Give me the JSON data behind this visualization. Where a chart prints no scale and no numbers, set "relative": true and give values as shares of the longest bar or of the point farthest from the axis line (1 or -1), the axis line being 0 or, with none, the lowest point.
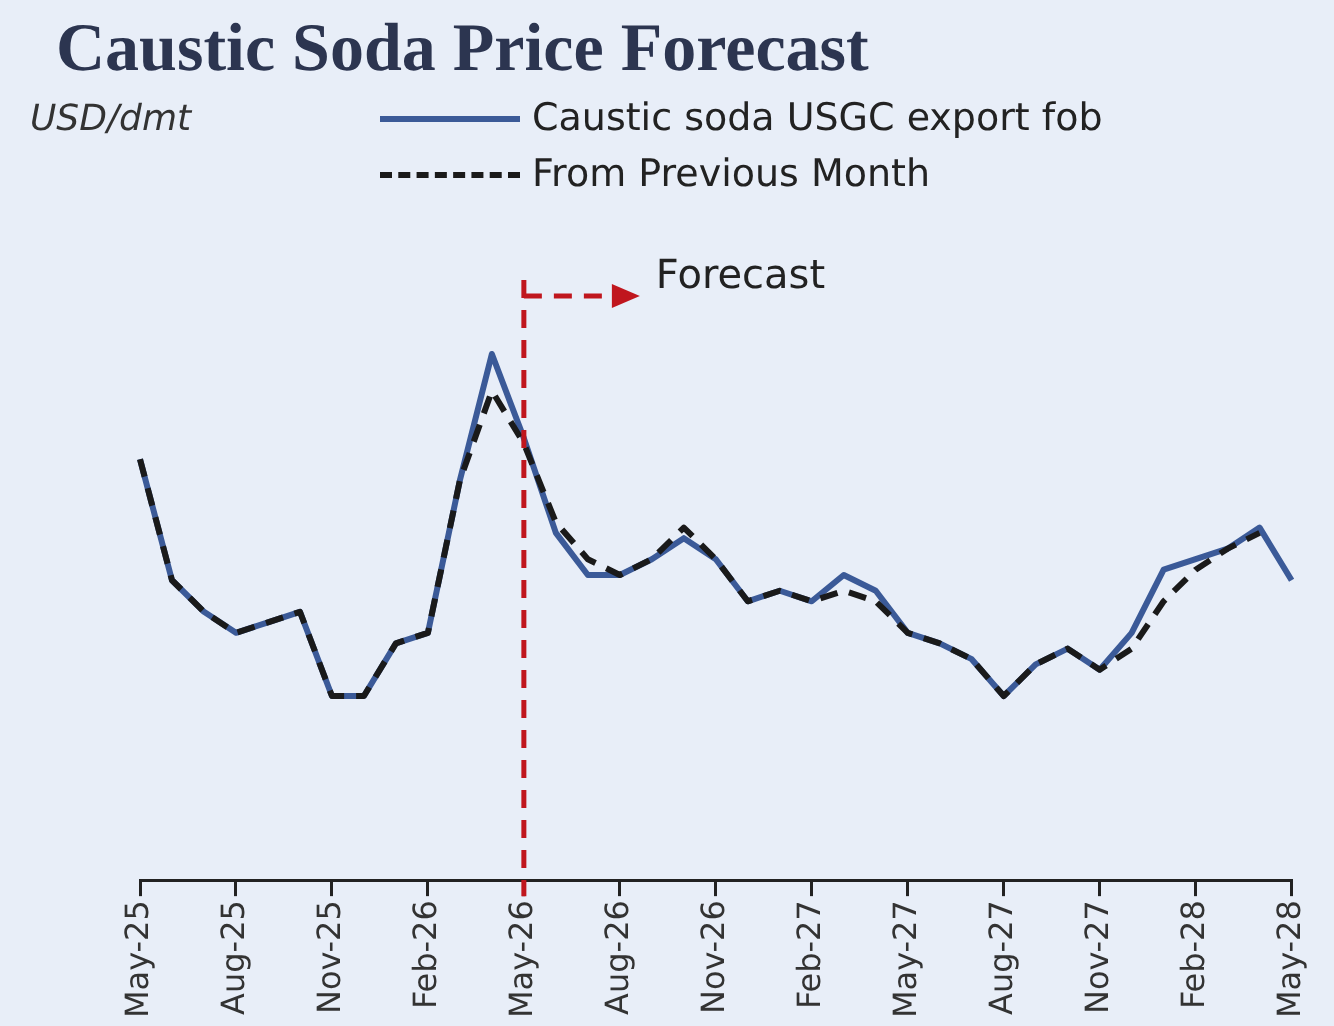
{
  "chart_data": {
    "type": "line",
    "title": "Caustic Soda Price Forecast",
    "annotations": [
      "USD/dmt"
    ],
    "relative": true,
    "legend": "top",
    "categories": [
      "May-25",
      null,
      null,
      "Aug-25",
      null,
      null,
      "Nov-25",
      null,
      null,
      "Feb-26",
      null,
      null,
      "May-26",
      null,
      null,
      "Aug-26",
      null,
      null,
      "Nov-26",
      null,
      null,
      "Feb-27",
      null,
      null,
      "May-27",
      null,
      null,
      "Aug-27",
      null,
      null,
      "Nov-27",
      null,
      null,
      "Feb-28",
      null,
      null,
      "May-28"
    ],
    "series": [
      {
        "name": "Caustic soda USGC export fob",
        "color": "#3b5a98",
        "values": [
          0.8,
          0.57,
          0.51,
          0.47,
          0.49,
          0.51,
          0.35,
          0.35,
          0.45,
          0.47,
          0.76,
          1.0,
          0.84,
          0.66,
          0.58,
          0.58,
          0.61,
          0.65,
          0.61,
          0.53,
          0.55,
          0.53,
          0.58,
          0.55,
          0.47,
          0.45,
          0.42,
          0.35,
          0.41,
          0.44,
          0.4,
          0.47,
          0.59,
          0.61,
          0.63,
          0.67,
          0.57
        ]
      },
      {
        "name": "From Previous Month",
        "color": "#1a1a1a",
        "line_style": "dashed",
        "values": [
          0.8,
          0.57,
          0.51,
          0.47,
          0.49,
          0.51,
          0.35,
          0.35,
          0.45,
          0.47,
          0.76,
          0.93,
          0.83,
          0.68,
          0.61,
          0.58,
          0.61,
          0.67,
          0.61,
          0.53,
          0.55,
          0.53,
          0.55,
          0.53,
          0.47,
          0.45,
          0.42,
          0.35,
          0.41,
          0.44,
          0.4,
          0.44,
          0.53,
          0.59,
          0.63,
          0.66,
          null
        ]
      }
    ],
    "ref_lines": [
      {
        "axis": "x",
        "value": "May-26",
        "label": "Forecast",
        "color": "#c0161e",
        "line_style": "dashed"
      }
    ]
  }
}
